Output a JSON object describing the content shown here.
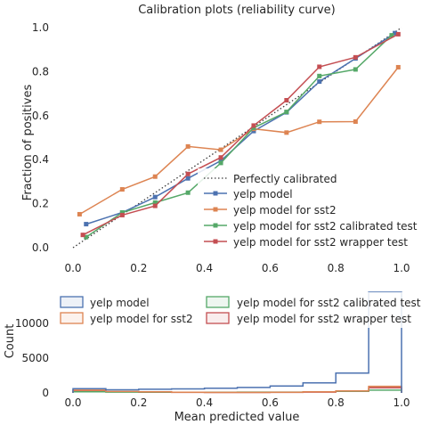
{
  "chart_data": [
    {
      "type": "line",
      "title": "Calibration plots  (reliability curve)",
      "xlabel": "",
      "ylabel": "Fraction of positives",
      "xlim": [
        -0.05,
        1.05
      ],
      "ylim": [
        -0.05,
        1.05
      ],
      "xticks": [
        "0.0",
        "0.2",
        "0.4",
        "0.6",
        "0.8",
        "1.0"
      ],
      "yticks": [
        "0.0",
        "0.2",
        "0.4",
        "0.6",
        "0.8",
        "1.0"
      ],
      "grid": false,
      "legend_position": "lower-right",
      "reference": {
        "name": "Perfectly calibrated",
        "x": [
          0,
          1
        ],
        "y": [
          0,
          1
        ],
        "style": "dotted",
        "color": "#3b3b3b"
      },
      "series": [
        {
          "name": "yelp model",
          "color": "#4c72b0",
          "x": [
            0.04,
            0.15,
            0.25,
            0.35,
            0.45,
            0.55,
            0.65,
            0.75,
            0.86,
            0.98
          ],
          "y": [
            0.107,
            0.16,
            0.23,
            0.315,
            0.395,
            0.53,
            0.615,
            0.755,
            0.86,
            0.975
          ]
        },
        {
          "name": "yelp model for sst2",
          "color": "#dd8452",
          "x": [
            0.02,
            0.15,
            0.25,
            0.35,
            0.45,
            0.55,
            0.65,
            0.75,
            0.86,
            0.99
          ],
          "y": [
            0.152,
            0.265,
            0.323,
            0.46,
            0.445,
            0.54,
            0.523,
            0.572,
            0.573,
            0.82
          ]
        },
        {
          "name": "yelp model for sst2 calibrated test",
          "color": "#55a868",
          "x": [
            0.04,
            0.15,
            0.25,
            0.35,
            0.45,
            0.55,
            0.65,
            0.75,
            0.86,
            0.97
          ],
          "y": [
            0.048,
            0.16,
            0.205,
            0.25,
            0.385,
            0.545,
            0.617,
            0.78,
            0.81,
            0.965
          ]
        },
        {
          "name": "yelp model for sst2 wrapper test",
          "color": "#c44e52",
          "x": [
            0.03,
            0.15,
            0.25,
            0.35,
            0.45,
            0.55,
            0.65,
            0.75,
            0.86,
            0.99
          ],
          "y": [
            0.058,
            0.148,
            0.19,
            0.335,
            0.41,
            0.555,
            0.67,
            0.822,
            0.865,
            0.97
          ]
        }
      ]
    },
    {
      "type": "histogram",
      "title": "",
      "xlabel": "Mean predicted value",
      "ylabel": "Count",
      "xlim": [
        -0.05,
        1.05
      ],
      "ylim": [
        0,
        15000
      ],
      "xticks": [
        "0.0",
        "0.2",
        "0.4",
        "0.6",
        "0.8",
        "1.0"
      ],
      "yticks": [
        "0",
        "5000",
        "10000"
      ],
      "legend_position": "top",
      "bin_edges": [
        0,
        0.1,
        0.2,
        0.3,
        0.4,
        0.5,
        0.6,
        0.7,
        0.8,
        0.9,
        1.0
      ],
      "series": [
        {
          "name": "yelp model",
          "color": "#4c72b0",
          "counts": [
            620,
            450,
            520,
            580,
            670,
            780,
            1000,
            1450,
            2850,
            14500
          ]
        },
        {
          "name": "yelp model for sst2",
          "color": "#dd8452",
          "counts": [
            400,
            200,
            150,
            100,
            80,
            80,
            100,
            150,
            300,
            950
          ]
        },
        {
          "name": "yelp model for sst2 calibrated test",
          "color": "#55a868",
          "counts": [
            150,
            120,
            110,
            100,
            100,
            110,
            120,
            150,
            250,
            400
          ]
        },
        {
          "name": "yelp model for sst2 wrapper test",
          "color": "#c44e52",
          "counts": [
            300,
            150,
            100,
            80,
            60,
            60,
            80,
            120,
            250,
            750
          ]
        }
      ]
    }
  ]
}
